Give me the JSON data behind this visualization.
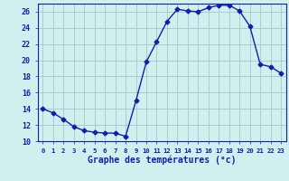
{
  "hours": [
    0,
    1,
    2,
    3,
    4,
    5,
    6,
    7,
    8,
    9,
    10,
    11,
    12,
    13,
    14,
    15,
    16,
    17,
    18,
    19,
    20,
    21,
    22,
    23
  ],
  "temps": [
    14.0,
    13.5,
    12.7,
    11.8,
    11.3,
    11.1,
    11.0,
    11.0,
    10.6,
    15.0,
    19.8,
    22.3,
    24.8,
    26.3,
    26.1,
    26.0,
    26.5,
    26.8,
    26.8,
    26.1,
    24.2,
    19.5,
    19.2,
    18.4
  ],
  "line_color": "#1a1aaa",
  "marker": "D",
  "markersize": 2.5,
  "bg_color": "#d0f0f0",
  "grid_color": "#aacccc",
  "xlabel": "Graphe des températures (°c)",
  "xlabel_color": "#1a1aaa",
  "axis_color": "#1a1aaa",
  "tick_color": "#1a1aaa",
  "ylim": [
    10,
    27
  ],
  "yticks": [
    10,
    12,
    14,
    16,
    18,
    20,
    22,
    24,
    26
  ],
  "xlim": [
    -0.5,
    23.5
  ],
  "xticks": [
    0,
    1,
    2,
    3,
    4,
    5,
    6,
    7,
    8,
    9,
    10,
    11,
    12,
    13,
    14,
    15,
    16,
    17,
    18,
    19,
    20,
    21,
    22,
    23
  ]
}
